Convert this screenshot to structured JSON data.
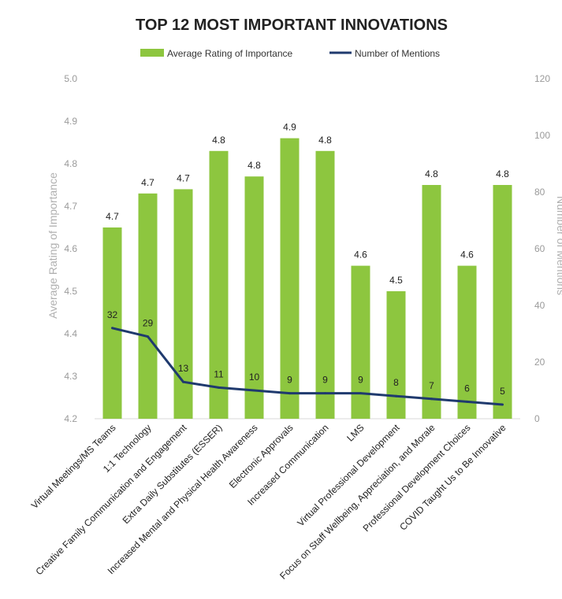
{
  "chart_data": {
    "type": "bar",
    "title": "TOP 12 MOST IMPORTANT INNOVATIONS",
    "categories": [
      "Virtual Meetings/MS Teams",
      "1:1 Technology",
      "Creative Family Communication and Engagement",
      "Extra Daily Substitutes (ESSER)",
      "Increased Mental and Physical Health Awareness",
      "Electronic Approvals",
      "Increased Communication",
      "LMS",
      "Virtual Professional Development",
      "Focus on Staff Wellbeing, Appreciation, and Morale",
      "Professional Development Choices",
      "COVID Taught Us to Be Innovative"
    ],
    "series": [
      {
        "name": "Average Rating of Importance",
        "type": "bar",
        "axis": "left",
        "color": "#8dc63f",
        "values": [
          4.65,
          4.73,
          4.74,
          4.83,
          4.77,
          4.86,
          4.83,
          4.56,
          4.5,
          4.75,
          4.56,
          4.75
        ],
        "labels": [
          "4.7",
          "4.7",
          "4.7",
          "4.8",
          "4.8",
          "4.9",
          "4.8",
          "4.6",
          "4.5",
          "4.8",
          "4.6",
          "4.8"
        ]
      },
      {
        "name": "Number of Mentions",
        "type": "line",
        "axis": "right",
        "color": "#1f3a6e",
        "values": [
          32,
          29,
          13,
          11,
          10,
          9,
          9,
          9,
          8,
          7,
          6,
          5
        ],
        "labels": [
          "32",
          "29",
          "13",
          "11",
          "10",
          "9",
          "9",
          "9",
          "8",
          "7",
          "6",
          "5"
        ]
      }
    ],
    "ylabel": "Average Rating of Importance",
    "y2label": "Number of Mentions",
    "ylim": [
      4.2,
      5.0
    ],
    "y2lim": [
      0,
      120
    ],
    "yticks": [
      "4.2",
      "4.3",
      "4.4",
      "4.5",
      "4.6",
      "4.7",
      "4.8",
      "4.9",
      "5.0"
    ],
    "y2ticks": [
      "0",
      "20",
      "40",
      "60",
      "80",
      "100",
      "120"
    ],
    "legend_position": "top",
    "grid": false
  }
}
